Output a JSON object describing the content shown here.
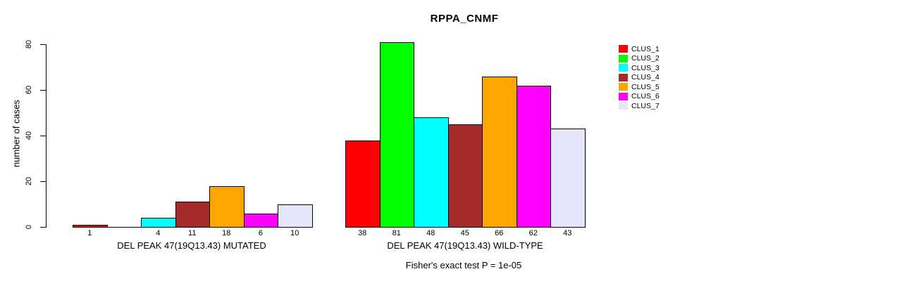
{
  "chart_data": {
    "type": "bar",
    "title": "RPPA_CNMF",
    "ylabel": "number of cases",
    "ylim": [
      0,
      80
    ],
    "yticks": [
      0,
      20,
      40,
      60,
      80
    ],
    "grid": false,
    "legend_position": "right",
    "series_colors": [
      "#FF0000",
      "#00FF00",
      "#00FFFF",
      "#A52A2A",
      "#FFA500",
      "#FF00FF",
      "#E6E6FA"
    ],
    "legend": [
      {
        "label": "CLUS_1",
        "color": "#FF0000"
      },
      {
        "label": "CLUS_2",
        "color": "#00FF00"
      },
      {
        "label": "CLUS_3",
        "color": "#00FFFF"
      },
      {
        "label": "CLUS_4",
        "color": "#A52A2A"
      },
      {
        "label": "CLUS_5",
        "color": "#FFA500"
      },
      {
        "label": "CLUS_6",
        "color": "#FF00FF"
      },
      {
        "label": "CLUS_7",
        "color": "#E6E6FA"
      }
    ],
    "groups": [
      {
        "label": "DEL PEAK 47(19Q13.43) MUTATED",
        "values": [
          1,
          0,
          4,
          11,
          18,
          6,
          10
        ],
        "bar_labels": [
          "1",
          "",
          "4",
          "11",
          "18",
          "6",
          "10"
        ]
      },
      {
        "label": "DEL PEAK 47(19Q13.43) WILD-TYPE",
        "values": [
          38,
          81,
          48,
          45,
          66,
          62,
          43
        ],
        "bar_labels": [
          "38",
          "81",
          "48",
          "45",
          "66",
          "62",
          "43"
        ]
      }
    ],
    "footnote": "Fisher's exact test P = 1e-05"
  }
}
